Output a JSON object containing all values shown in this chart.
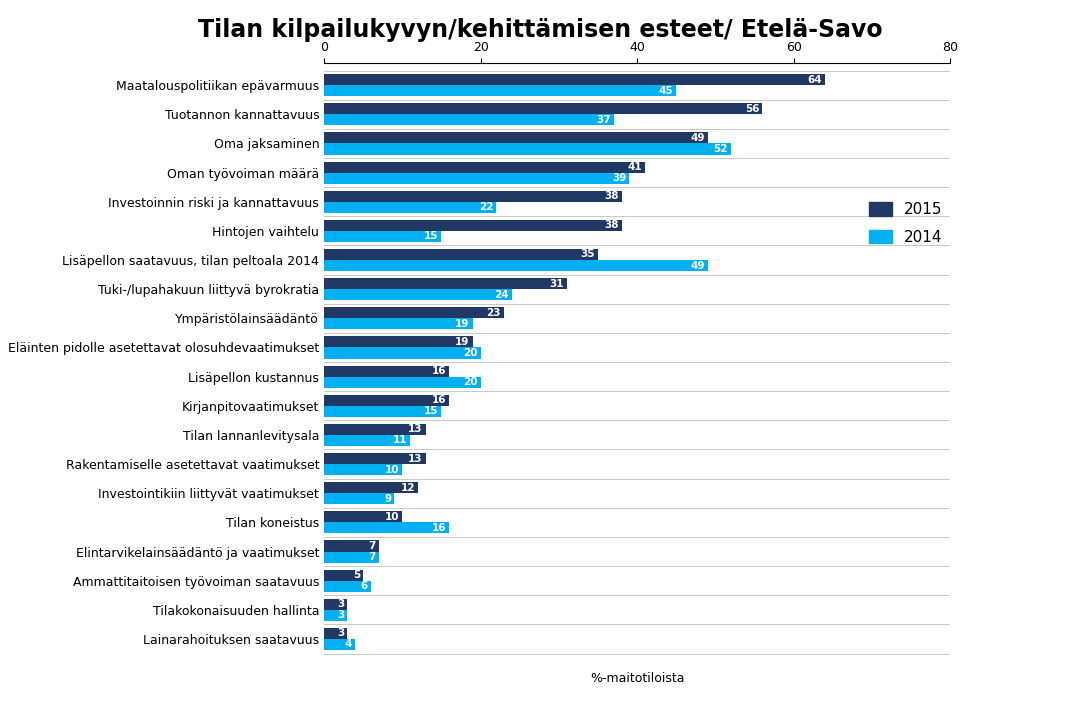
{
  "title": "Tilan kilpailukyvyn/kehittämisen esteet/ Etelä-Savo",
  "xlabel": "%-maitotiloista",
  "categories": [
    "Maatalouspolitiikan epävarmuus",
    "Tuotannon kannattavuus",
    "Oma jaksaminen",
    "Oman työvoiman määrä",
    "Investoinnin riski ja kannattavuus",
    "Hintojen vaihtelu",
    "Lisäpellon saatavuus, tilan peltoala 2014",
    "Tuki-/lupahakuun liittyvä byrokratia",
    "Ympäristölainsäädäntö",
    "Eläinten pidolle asetettavat olosuhdevaatimukset",
    "Lisäpellon kustannus",
    "Kirjanpitovaatimukset",
    "Tilan lannanlevitysala",
    "Rakentamiselle asetettavat vaatimukset",
    "Investointikiin liittyvät vaatimukset",
    "Tilan koneistus",
    "Elintarvikelainsäädäntö ja vaatimukset",
    "Ammattitaitoisen työvoiman saatavuus",
    "Tilakokonaisuuden hallinta",
    "Lainarahoituksen saatavuus"
  ],
  "values_2015": [
    64,
    56,
    49,
    41,
    38,
    38,
    35,
    31,
    23,
    19,
    16,
    16,
    13,
    13,
    12,
    10,
    7,
    5,
    3,
    3
  ],
  "values_2014": [
    45,
    37,
    52,
    39,
    22,
    15,
    49,
    24,
    19,
    20,
    20,
    15,
    11,
    10,
    9,
    16,
    7,
    6,
    3,
    4
  ],
  "color_2015": "#1F3864",
  "color_2014": "#00B0F0",
  "xlim": [
    0,
    80
  ],
  "xticks": [
    0,
    20,
    40,
    60,
    80
  ],
  "bar_height": 0.38,
  "legend_labels": [
    "2015",
    "2014"
  ],
  "title_fontsize": 17,
  "label_fontsize": 9,
  "tick_fontsize": 9,
  "value_fontsize": 7.5,
  "background_color": "#FFFFFF"
}
